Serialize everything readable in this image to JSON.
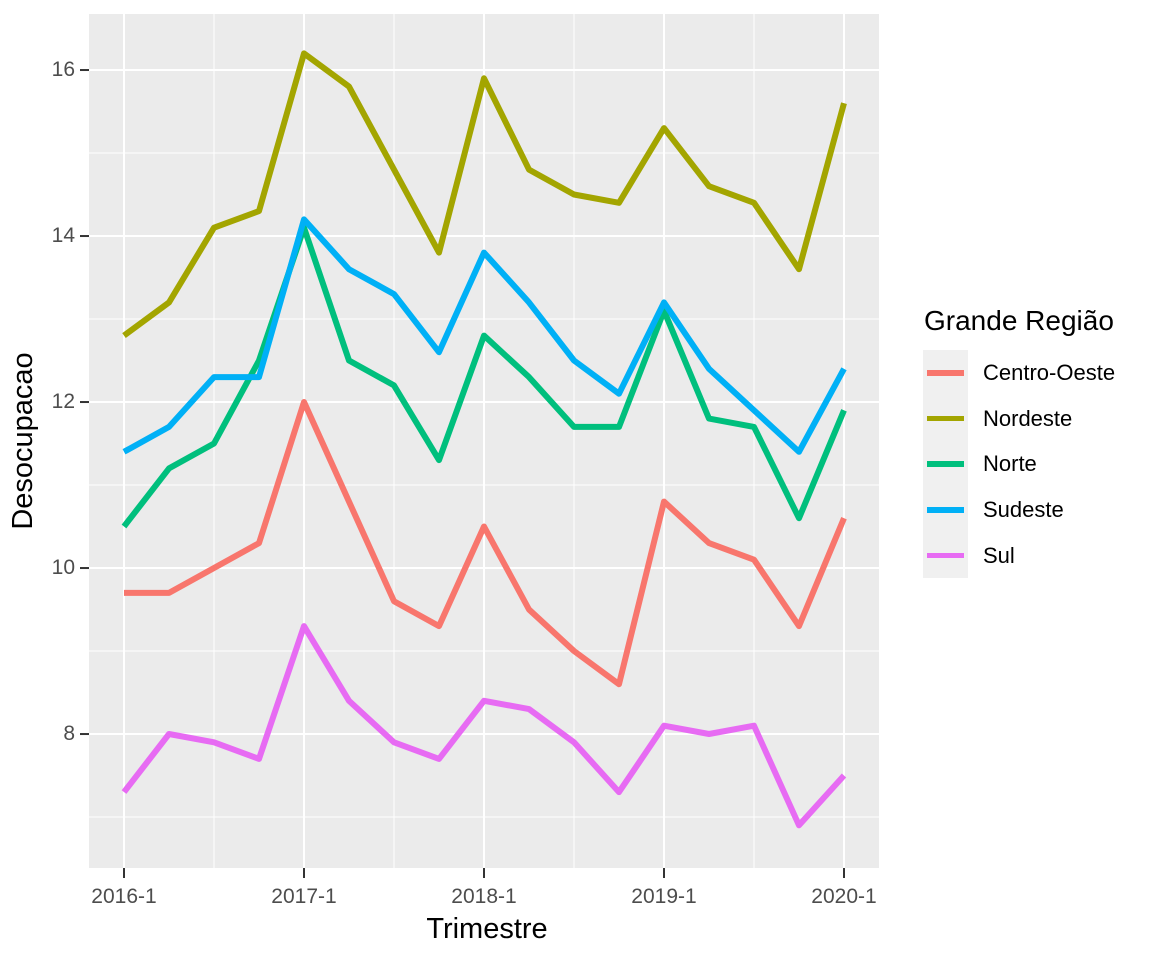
{
  "chart_data": {
    "type": "line",
    "title": "",
    "xlabel": "Trimestre",
    "ylabel": "Desocupacao",
    "legend_title": "Grande Região",
    "legend_position": "right",
    "grid": true,
    "panel_bg": "#EBEBEB",
    "gridline_color": "#FFFFFF",
    "tick_mark_color": "#333333",
    "tick_label_color": "#4D4D4D",
    "x_categories": [
      "2016-1",
      "2016-2",
      "2016-3",
      "2016-4",
      "2017-1",
      "2017-2",
      "2017-3",
      "2017-4",
      "2018-1",
      "2018-2",
      "2018-3",
      "2018-4",
      "2019-1",
      "2019-2",
      "2019-3",
      "2019-4",
      "2020-1"
    ],
    "x_major_ticks": [
      {
        "index": 0,
        "label": "2016-1"
      },
      {
        "index": 4,
        "label": "2017-1"
      },
      {
        "index": 8,
        "label": "2018-1"
      },
      {
        "index": 12,
        "label": "2019-1"
      },
      {
        "index": 16,
        "label": "2020-1"
      }
    ],
    "x_minor_tick_indices": [
      2,
      6,
      10,
      14
    ],
    "y_ticks": [
      8,
      10,
      12,
      14,
      16
    ],
    "y_minor_ticks": [
      7,
      9,
      11,
      13,
      15
    ],
    "ylim": [
      6.386,
      16.675
    ],
    "xlim_index": [
      -0.778,
      16.778
    ],
    "series": [
      {
        "name": "Centro-Oeste",
        "color": "#F8766D",
        "values": [
          9.7,
          9.7,
          10.0,
          10.3,
          12.0,
          10.8,
          9.6,
          9.3,
          10.5,
          9.5,
          9.0,
          8.6,
          10.8,
          10.3,
          10.1,
          9.3,
          10.6
        ]
      },
      {
        "name": "Nordeste",
        "color": "#A3A500",
        "values": [
          12.8,
          13.2,
          14.1,
          14.3,
          16.2,
          15.8,
          14.8,
          13.8,
          15.9,
          14.8,
          14.5,
          14.4,
          15.3,
          14.6,
          14.4,
          13.6,
          15.6
        ]
      },
      {
        "name": "Norte",
        "color": "#00BF7D",
        "values": [
          10.5,
          11.2,
          11.5,
          12.5,
          14.1,
          12.5,
          12.2,
          11.3,
          12.8,
          12.3,
          11.7,
          11.7,
          13.1,
          11.8,
          11.7,
          10.6,
          11.9
        ]
      },
      {
        "name": "Sudeste",
        "color": "#00B0F6",
        "values": [
          11.4,
          11.7,
          12.3,
          12.3,
          14.2,
          13.6,
          13.3,
          12.6,
          13.8,
          13.2,
          12.5,
          12.1,
          13.2,
          12.4,
          11.9,
          11.4,
          12.4
        ]
      },
      {
        "name": "Sul",
        "color": "#E76BF3",
        "values": [
          7.3,
          8.0,
          7.9,
          7.7,
          9.3,
          8.4,
          7.9,
          7.7,
          8.4,
          8.3,
          7.9,
          7.3,
          8.1,
          8.0,
          8.1,
          6.9,
          7.5
        ]
      }
    ]
  }
}
